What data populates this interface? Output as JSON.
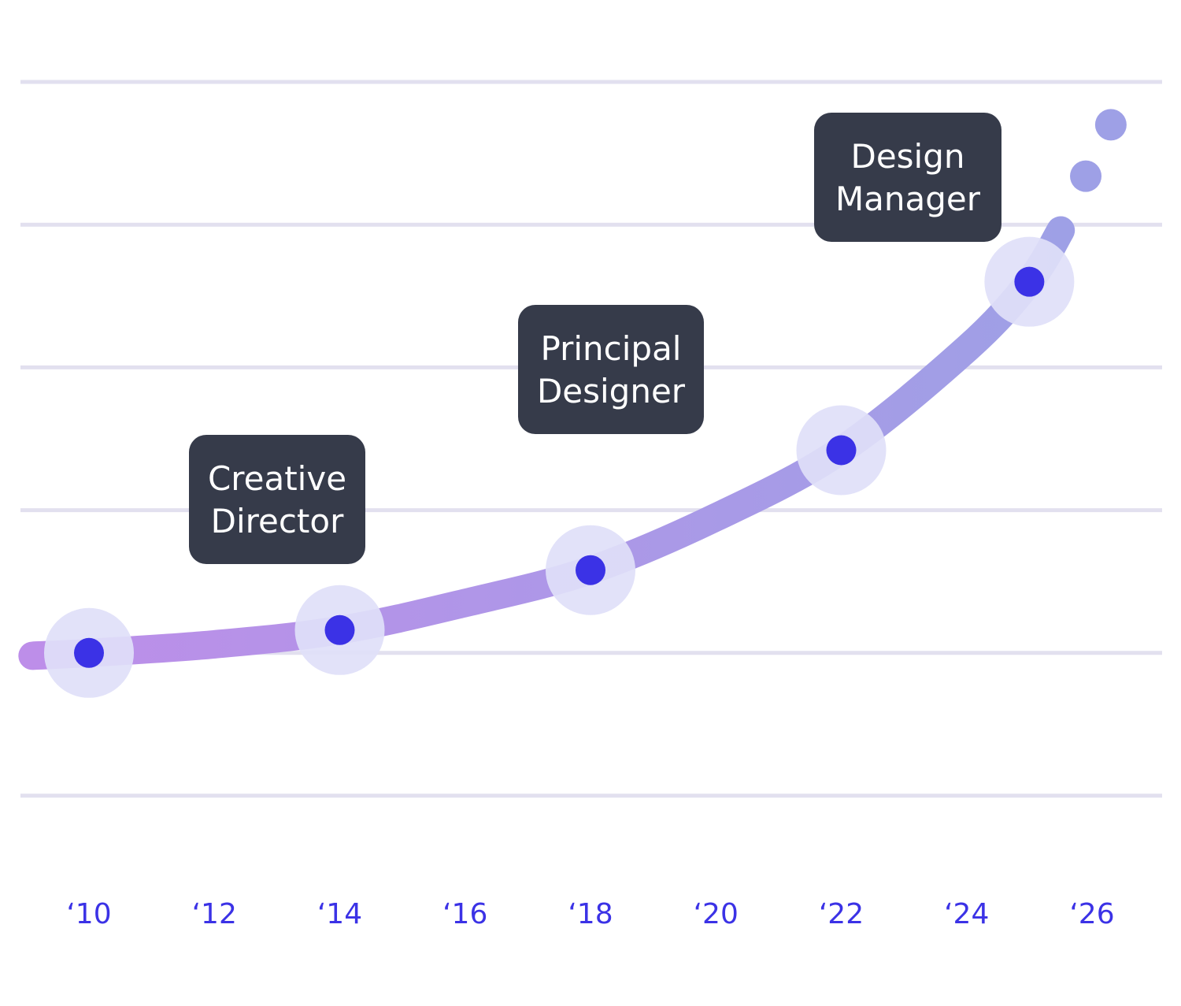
{
  "chart_data": {
    "type": "line",
    "title": "",
    "xlabel": "",
    "ylabel": "",
    "x_ticks": [
      "‘10",
      "‘12",
      "‘14",
      "‘16",
      "‘18",
      "‘20",
      "‘22",
      "‘24",
      "‘26"
    ],
    "xlim": [
      2009.1,
      2026.4
    ],
    "ylim": [
      0,
      5
    ],
    "grid": true,
    "gridlines_y": [
      0,
      1,
      2,
      3,
      4,
      5
    ],
    "curve": {
      "x": [
        2009.1,
        2010,
        2012,
        2014,
        2016,
        2018,
        2020,
        2022,
        2024,
        2025,
        2025.5
      ],
      "y": [
        0.98,
        1.0,
        1.06,
        1.16,
        1.35,
        1.58,
        1.95,
        2.42,
        3.13,
        3.6,
        3.96
      ]
    },
    "trail_dots": [
      {
        "x": 2025.9,
        "y": 4.34
      },
      {
        "x": 2026.3,
        "y": 4.7
      }
    ],
    "milestones": [
      {
        "x": 2010,
        "y": 1.0
      },
      {
        "x": 2014,
        "y": 1.16
      },
      {
        "x": 2018,
        "y": 1.58
      },
      {
        "x": 2022,
        "y": 2.42
      },
      {
        "x": 2025,
        "y": 3.6
      }
    ],
    "callouts": [
      {
        "lines": [
          "Creative",
          "Director"
        ]
      },
      {
        "lines": [
          "Principal",
          "Designer"
        ]
      },
      {
        "lines": [
          "Design",
          "Manager"
        ]
      }
    ]
  },
  "colors": {
    "grid": "#e2e0ef",
    "tick_label": "#3b32e6",
    "gradient_start": "#bd8ee9",
    "gradient_end": "#9ea0e6",
    "point_halo": "#e0dff9",
    "point": "#3b32e6",
    "callout_bg": "#363b4a",
    "callout_text": "#ffffff"
  }
}
